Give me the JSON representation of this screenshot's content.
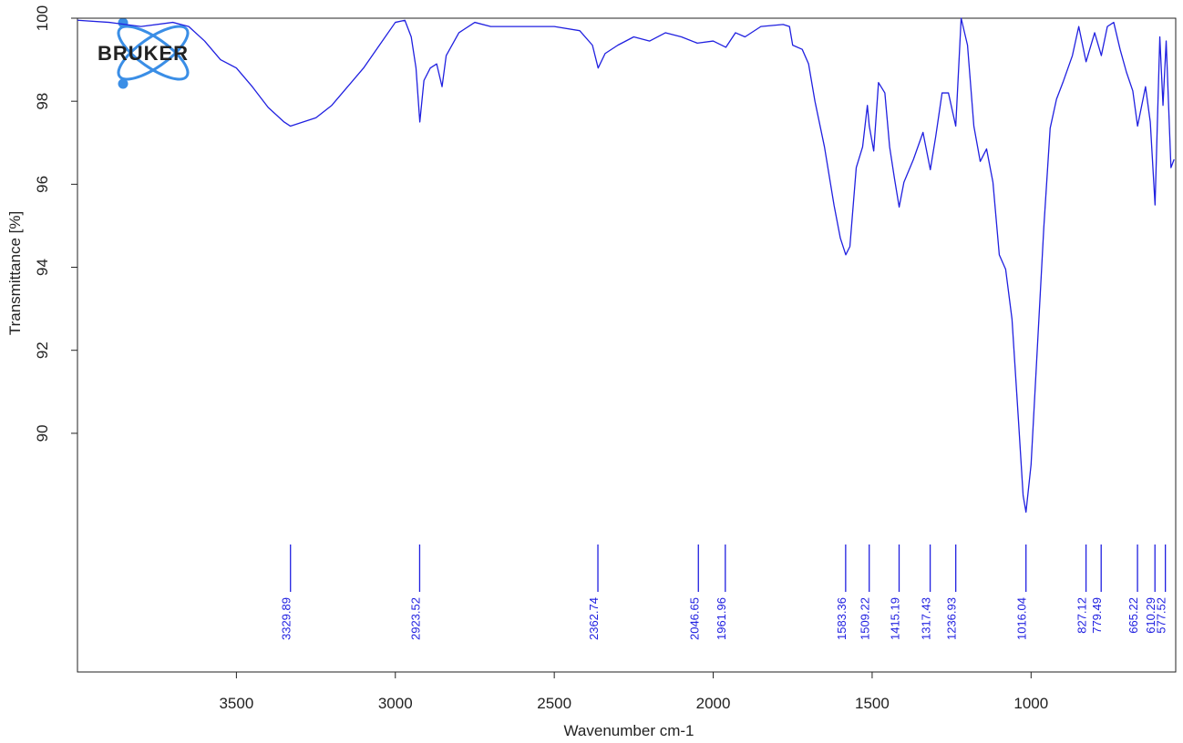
{
  "logo": "BRUKER",
  "chart_data": {
    "type": "line",
    "xlabel": "Wavenumber cm-1",
    "ylabel": "Transmittance [%]",
    "xlim": [
      4000,
      545
    ],
    "ylim": [
      84.25,
      100
    ],
    "xticks": [
      3500,
      3000,
      2500,
      2000,
      1500,
      1000
    ],
    "yticks": [
      90,
      92,
      94,
      96,
      98,
      100
    ],
    "x": [
      4000,
      3900,
      3800,
      3700,
      3650,
      3600,
      3550,
      3500,
      3450,
      3400,
      3350,
      3330,
      3250,
      3200,
      3150,
      3100,
      3050,
      3000,
      2970,
      2950,
      2935,
      2923,
      2910,
      2890,
      2870,
      2853,
      2840,
      2800,
      2750,
      2700,
      2600,
      2500,
      2420,
      2380,
      2362,
      2340,
      2300,
      2250,
      2200,
      2150,
      2100,
      2050,
      2000,
      1960,
      1930,
      1900,
      1850,
      1780,
      1760,
      1750,
      1720,
      1700,
      1680,
      1650,
      1620,
      1600,
      1583,
      1570,
      1550,
      1530,
      1515,
      1509,
      1495,
      1480,
      1460,
      1445,
      1430,
      1415,
      1400,
      1370,
      1340,
      1317,
      1300,
      1280,
      1260,
      1237,
      1220,
      1200,
      1180,
      1160,
      1140,
      1120,
      1100,
      1080,
      1060,
      1040,
      1025,
      1016,
      1000,
      980,
      960,
      940,
      920,
      900,
      870,
      850,
      827,
      800,
      779,
      760,
      740,
      720,
      700,
      680,
      665,
      640,
      625,
      610,
      595,
      585,
      575,
      560,
      550
    ],
    "series": [
      {
        "color": "#2020e0",
        "values": [
          99.95,
          99.9,
          99.8,
          99.9,
          99.8,
          99.45,
          99.0,
          98.8,
          98.35,
          97.85,
          97.5,
          97.4,
          97.6,
          97.9,
          98.35,
          98.8,
          99.35,
          99.9,
          99.95,
          99.55,
          98.8,
          97.5,
          98.5,
          98.8,
          98.9,
          98.35,
          99.1,
          99.65,
          99.9,
          99.8,
          99.8,
          99.8,
          99.7,
          99.35,
          98.8,
          99.15,
          99.35,
          99.55,
          99.45,
          99.65,
          99.55,
          99.4,
          99.45,
          99.3,
          99.65,
          99.55,
          99.8,
          99.85,
          99.8,
          99.35,
          99.25,
          98.9,
          98.0,
          96.9,
          95.5,
          94.7,
          94.3,
          94.5,
          96.4,
          96.9,
          97.9,
          97.4,
          96.8,
          98.45,
          98.2,
          96.9,
          96.15,
          95.45,
          96.05,
          96.6,
          97.25,
          96.35,
          97.15,
          98.2,
          98.2,
          97.4,
          100,
          99.35,
          97.4,
          96.55,
          96.85,
          96.05,
          94.3,
          93.95,
          92.75,
          90.35,
          88.5,
          88.1,
          89.25,
          92.1,
          94.95,
          97.35,
          98.05,
          98.45,
          99.1,
          99.8,
          98.95,
          99.65,
          99.1,
          99.8,
          99.9,
          99.25,
          98.7,
          98.25,
          97.4,
          98.35,
          97.5,
          95.5,
          99.55,
          97.9,
          99.45,
          96.4,
          96.6
        ]
      }
    ],
    "peaks": [
      3329.89,
      2923.52,
      2362.74,
      2046.65,
      1961.96,
      1583.36,
      1509.22,
      1415.19,
      1317.43,
      1236.93,
      1016.04,
      827.12,
      779.49,
      665.22,
      610.29,
      577.52
    ],
    "peak_color": "#2020e0"
  }
}
